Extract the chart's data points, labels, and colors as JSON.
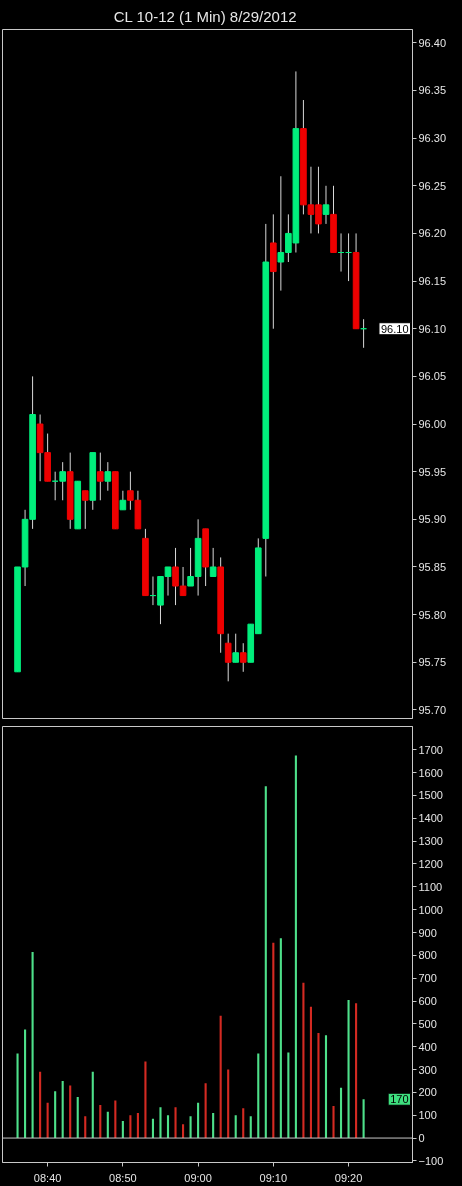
{
  "chart_data": [
    {
      "type": "candlestick",
      "title": "CL 10-12 (1 Min)  8/29/2012",
      "categories": [
        null,
        null,
        null,
        null,
        null,
        null,
        null,
        null,
        null,
        null,
        null,
        null,
        null,
        null,
        null,
        null,
        null,
        null,
        null,
        null,
        null,
        null,
        null,
        null,
        null,
        null,
        null,
        null,
        null,
        null,
        null,
        null,
        null,
        null,
        null,
        null,
        null,
        null,
        null,
        null,
        null,
        null,
        null,
        null,
        null,
        null,
        null
      ],
      "ohlc": [
        [
          95.74,
          95.85,
          95.74,
          95.85
        ],
        [
          95.85,
          95.91,
          95.83,
          95.9
        ],
        [
          95.9,
          96.05,
          95.89,
          96.01
        ],
        [
          96.0,
          96.01,
          95.94,
          95.97
        ],
        [
          95.97,
          95.99,
          95.94,
          95.94
        ],
        [
          95.94,
          95.95,
          95.92,
          95.94
        ],
        [
          95.94,
          95.96,
          95.92,
          95.95
        ],
        [
          95.95,
          95.97,
          95.89,
          95.9
        ],
        [
          95.89,
          95.94,
          95.89,
          95.94
        ],
        [
          95.93,
          95.93,
          95.89,
          95.92
        ],
        [
          95.92,
          95.97,
          95.91,
          95.97
        ],
        [
          95.95,
          95.97,
          95.92,
          95.94
        ],
        [
          95.94,
          95.96,
          95.93,
          95.95
        ],
        [
          95.95,
          95.95,
          95.89,
          95.89
        ],
        [
          95.91,
          95.93,
          95.91,
          95.92
        ],
        [
          95.93,
          95.95,
          95.91,
          95.92
        ],
        [
          95.92,
          95.93,
          95.89,
          95.89
        ],
        [
          95.88,
          95.89,
          95.82,
          95.82
        ],
        [
          95.82,
          95.84,
          95.81,
          95.82
        ],
        [
          95.81,
          95.84,
          95.79,
          95.84
        ],
        [
          95.84,
          95.85,
          95.82,
          95.85
        ],
        [
          95.85,
          95.87,
          95.81,
          95.83
        ],
        [
          95.83,
          95.85,
          95.82,
          95.82
        ],
        [
          95.83,
          95.87,
          95.83,
          95.84
        ],
        [
          95.84,
          95.9,
          95.82,
          95.88
        ],
        [
          95.89,
          95.89,
          95.83,
          95.85
        ],
        [
          95.84,
          95.87,
          95.84,
          95.85
        ],
        [
          95.85,
          95.86,
          95.76,
          95.78
        ],
        [
          95.77,
          95.78,
          95.73,
          95.75
        ],
        [
          95.75,
          95.78,
          95.75,
          95.76
        ],
        [
          95.76,
          95.77,
          95.74,
          95.75
        ],
        [
          95.75,
          95.79,
          95.75,
          95.79
        ],
        [
          95.78,
          95.88,
          95.78,
          95.87
        ],
        [
          95.88,
          96.21,
          95.84,
          96.17
        ],
        [
          96.19,
          96.22,
          96.1,
          96.16
        ],
        [
          96.17,
          96.26,
          96.14,
          96.18
        ],
        [
          96.18,
          96.22,
          96.17,
          96.2
        ],
        [
          96.19,
          96.37,
          96.18,
          96.31
        ],
        [
          96.31,
          96.34,
          96.22,
          96.23
        ],
        [
          96.23,
          96.27,
          96.2,
          96.22
        ],
        [
          96.23,
          96.27,
          96.2,
          96.21
        ],
        [
          96.22,
          96.25,
          96.21,
          96.23
        ],
        [
          96.22,
          96.25,
          96.18,
          96.18
        ],
        [
          96.18,
          96.2,
          96.16,
          96.18
        ],
        [
          96.18,
          96.2,
          96.15,
          96.18
        ],
        [
          96.18,
          96.2,
          96.1,
          96.1
        ],
        [
          96.1,
          96.11,
          96.08,
          96.1
        ]
      ],
      "colors": [
        "#00ee7c",
        "#00ee7c",
        "#00ee7c",
        "#ee0000",
        "#ee0000",
        "#00ee7c",
        "#00ee7c",
        "#ee0000",
        "#00ee7c",
        "#ee0000",
        "#00ee7c",
        "#ee0000",
        "#00ee7c",
        "#ee0000",
        "#00ee7c",
        "#ee0000",
        "#ee0000",
        "#ee0000",
        "#00ee7c",
        "#00ee7c",
        "#00ee7c",
        "#ee0000",
        "#ee0000",
        "#00ee7c",
        "#00ee7c",
        "#ee0000",
        "#00ee7c",
        "#ee0000",
        "#ee0000",
        "#00ee7c",
        "#ee0000",
        "#00ee7c",
        "#00ee7c",
        "#00ee7c",
        "#ee0000",
        "#00ee7c",
        "#00ee7c",
        "#00ee7c",
        "#ee0000",
        "#ee0000",
        "#ee0000",
        "#00ee7c",
        "#ee0000",
        "#00ee7c",
        "#00ee7c",
        "#ee0000",
        "#00ee7c"
      ],
      "ylim": [
        95.691,
        96.414
      ],
      "yticks": [
        {
          "value": 95.7,
          "label": "95.70"
        },
        95.75,
        {
          "value": 95.8,
          "label": "95.80"
        },
        95.85,
        {
          "value": 95.9,
          "label": "95.90"
        },
        95.95,
        {
          "value": 96.0,
          "label": "96.00"
        },
        96.05,
        {
          "value": 96.1,
          "label": "96.10"
        },
        96.15,
        {
          "value": 96.2,
          "label": "96.20"
        },
        96.25,
        {
          "value": 96.3,
          "label": "96.30"
        },
        96.35,
        {
          "value": 96.4,
          "label": "96.40"
        }
      ],
      "annotations": [
        "96.10"
      ]
    },
    {
      "type": "bar",
      "categories": [
        null,
        null,
        null,
        null,
        "08:40",
        null,
        null,
        null,
        null,
        null,
        null,
        null,
        null,
        null,
        "08:50",
        null,
        null,
        null,
        null,
        null,
        null,
        null,
        null,
        null,
        "09:00",
        null,
        null,
        null,
        null,
        null,
        null,
        null,
        null,
        null,
        "09:10",
        null,
        null,
        null,
        null,
        null,
        null,
        null,
        null,
        null,
        "09:20",
        null,
        null
      ],
      "values": [
        370,
        475,
        815,
        290,
        155,
        205,
        250,
        230,
        180,
        95,
        290,
        145,
        115,
        165,
        75,
        100,
        110,
        335,
        85,
        135,
        100,
        135,
        60,
        95,
        155,
        240,
        110,
        535,
        300,
        100,
        130,
        95,
        370,
        1540,
        855,
        875,
        375,
        1675,
        680,
        575,
        460,
        450,
        140,
        220,
        605,
        590,
        170
      ],
      "colors": [
        "#4ee08a",
        "#4ee08a",
        "#4ee08a",
        "#d42a22",
        "#d42a22",
        "#4ee08a",
        "#4ee08a",
        "#d42a22",
        "#4ee08a",
        "#d42a22",
        "#4ee08a",
        "#d42a22",
        "#4ee08a",
        "#d42a22",
        "#4ee08a",
        "#d42a22",
        "#d42a22",
        "#d42a22",
        "#4ee08a",
        "#4ee08a",
        "#4ee08a",
        "#d42a22",
        "#d42a22",
        "#4ee08a",
        "#4ee08a",
        "#d42a22",
        "#4ee08a",
        "#d42a22",
        "#d42a22",
        "#4ee08a",
        "#d42a22",
        "#4ee08a",
        "#4ee08a",
        "#4ee08a",
        "#d42a22",
        "#4ee08a",
        "#4ee08a",
        "#4ee08a",
        "#d42a22",
        "#d42a22",
        "#d42a22",
        "#4ee08a",
        "#d42a22",
        "#4ee08a",
        "#4ee08a",
        "#d42a22",
        "#4ee08a"
      ],
      "ylim": [
        -107,
        1802
      ],
      "yticks": [
        -100,
        0,
        100,
        200,
        300,
        400,
        500,
        600,
        700,
        800,
        900,
        1000,
        1100,
        1200,
        1300,
        1400,
        1500,
        1600,
        1700
      ],
      "ref_lines": [
        {
          "axis": "y",
          "value": 0,
          "color": "#c8c8c8"
        }
      ],
      "annotations": [
        "170"
      ]
    }
  ]
}
